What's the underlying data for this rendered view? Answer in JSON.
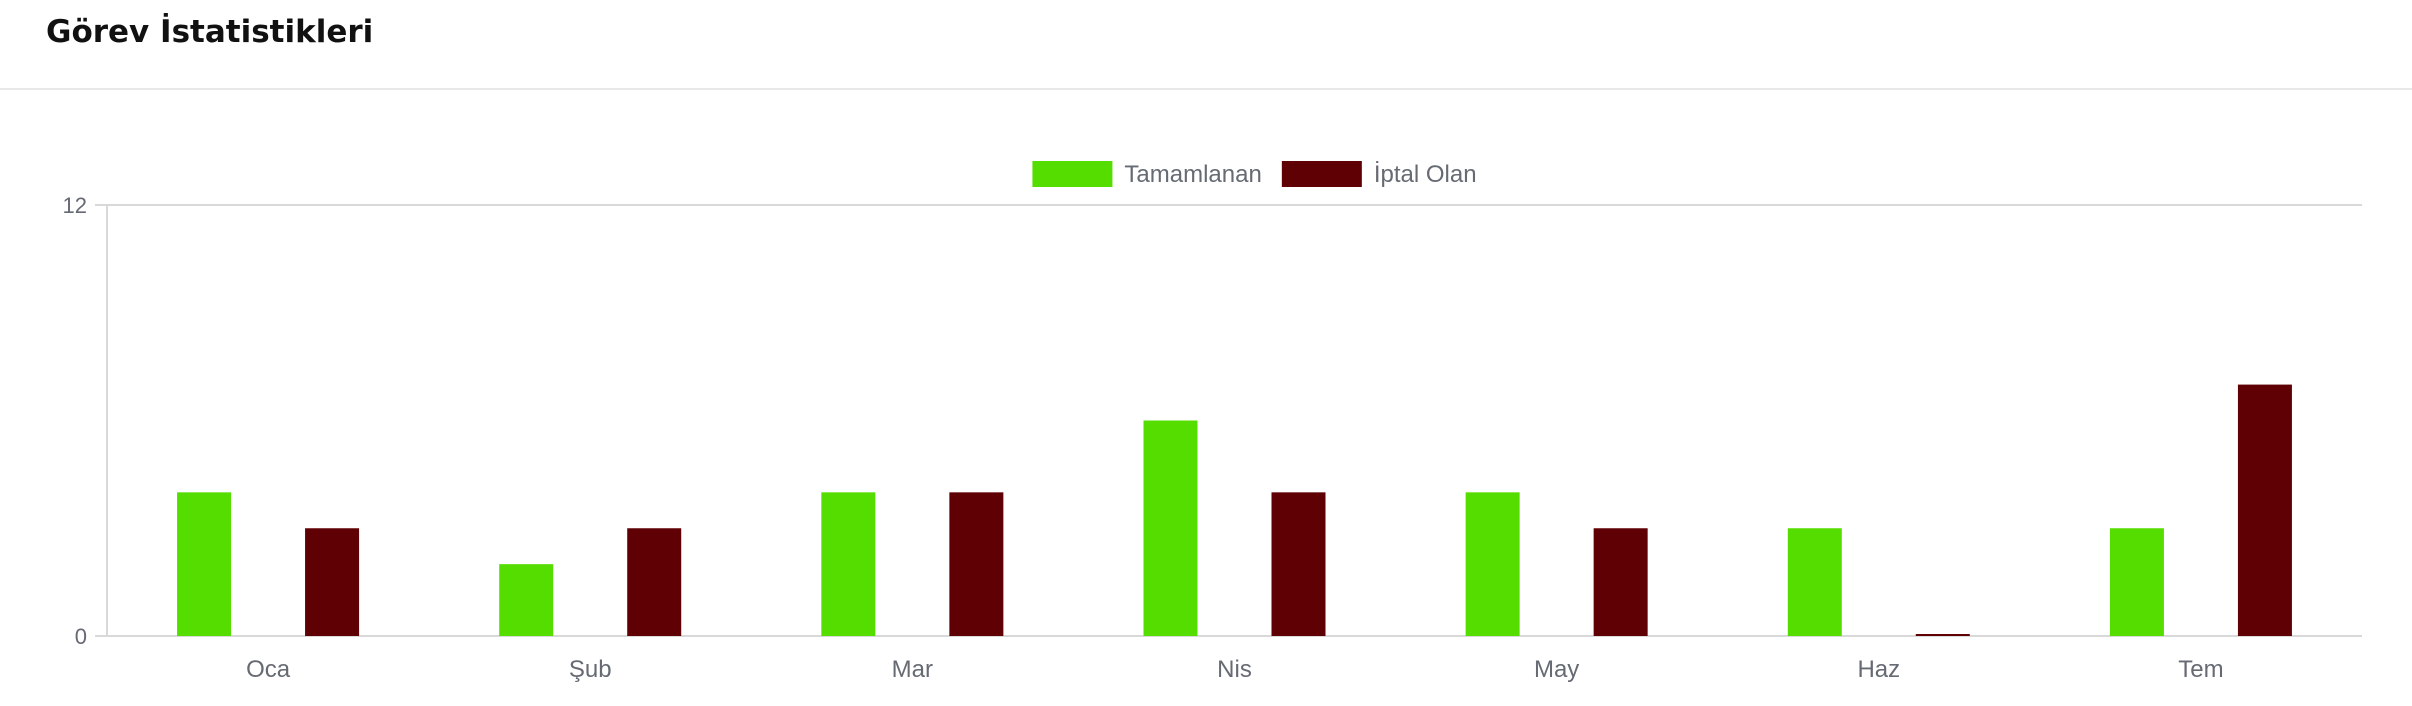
{
  "header": {
    "title": "Görev İstatistikleri"
  },
  "chart_data": {
    "type": "bar",
    "categories": [
      "Oca",
      "Şub",
      "Mar",
      "Nis",
      "May",
      "Haz",
      "Tem"
    ],
    "series": [
      {
        "name": "Tamamlanan",
        "color": "#55dd00",
        "values": [
          4,
          2,
          4,
          6,
          4,
          3,
          3
        ]
      },
      {
        "name": "İptal Olan",
        "color": "#5e0004",
        "values": [
          3,
          3,
          4,
          4,
          3,
          0,
          7
        ]
      }
    ],
    "ylim": [
      0,
      12
    ],
    "yticks": [
      0,
      12
    ],
    "legend_position": "top-center",
    "grid": false
  }
}
